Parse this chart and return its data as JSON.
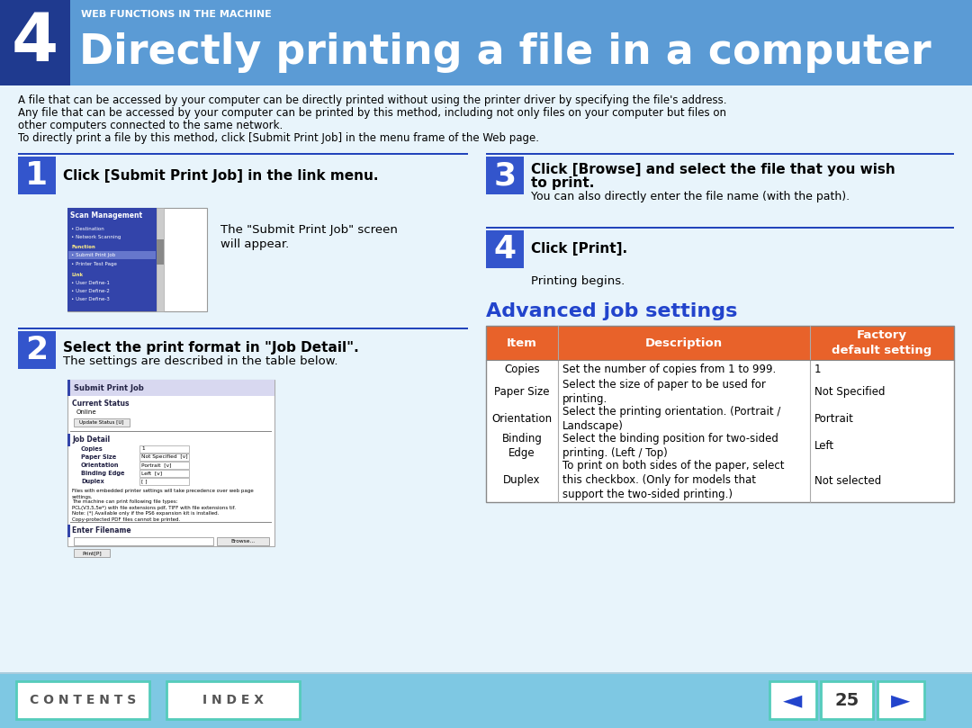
{
  "title_num": "4",
  "subtitle": "WEB FUNCTIONS IN THE MACHINE",
  "title": "Directly printing a file in a computer",
  "title_bg": "#5b9bd5",
  "title_num_bg": "#1f3a8f",
  "body_bg": "#deeef8",
  "footer_bg": "#7ec8e3",
  "step_bg": "#3355cc",
  "blue_line_color": "#2244bb",
  "intro_text_lines": [
    "A file that can be accessed by your computer can be directly printed without using the printer driver by specifying the file's address.",
    "Any file that can be accessed by your computer can be printed by this method, including not only files on your computer but files on",
    "other computers connected to the same network.",
    "To directly print a file by this method, click [Submit Print Job] in the menu frame of the Web page."
  ],
  "step1_title": "Click [Submit Print Job] in the link menu.",
  "step1_desc_lines": [
    "The \"Submit Print Job\" screen",
    "will appear."
  ],
  "step2_title": "Select the print format in \"Job Detail\".",
  "step2_desc": "The settings are described in the table below.",
  "step3_title_lines": [
    "Click [Browse] and select the file that you wish",
    "to print."
  ],
  "step3_desc": "You can also directly enter the file name (with the path).",
  "step4_title": "Click [Print].",
  "step4_desc": "Printing begins.",
  "adv_title": "Advanced job settings",
  "adv_title_color": "#2244cc",
  "table_header_bg": "#e8622a",
  "table_col1": "Item",
  "table_col2": "Description",
  "table_col3": "Factory\ndefault setting",
  "table_rows": [
    [
      "Copies",
      "Set the number of copies from 1 to 999.",
      "1"
    ],
    [
      "Paper Size",
      "Select the size of paper to be used for\nprinting.",
      "Not Specified"
    ],
    [
      "Orientation",
      "Select the printing orientation. (Portrait /\nLandscape)",
      "Portrait"
    ],
    [
      "Binding\nEdge",
      "Select the binding position for two-sided\nprinting. (Left / Top)",
      "Left"
    ],
    [
      "Duplex",
      "To print on both sides of the paper, select\nthis checkbox. (Only for models that\nsupport the two-sided printing.)",
      "Not selected"
    ]
  ],
  "page_num": "25",
  "contents_label": "C O N T E N T S",
  "index_label": "I N D E X"
}
